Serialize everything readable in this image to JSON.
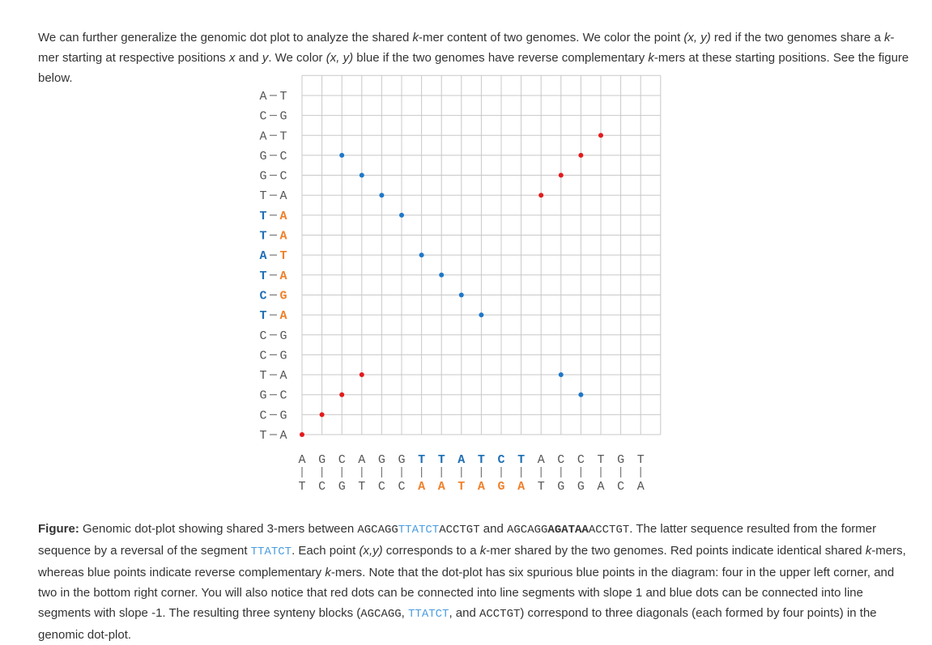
{
  "intro": {
    "p1": "We can further generalize the genomic dot plot to analyze the shared ",
    "k1": "k",
    "p2": "-mer content of two genomes. We color the point ",
    "xy1": "(x, y)",
    "p3": " red if the two genomes share a ",
    "k2": "k",
    "p4": "-mer starting at respective positions ",
    "x": "x",
    "p5": " and ",
    "y": "y",
    "p6": ". We color ",
    "xy2": "(x, y)",
    "p7": " blue if the two genomes have reverse complementary ",
    "k3": "k",
    "p8": "-mers at these starting positions. See the figure below."
  },
  "caption": {
    "label": "Figure:",
    "c1": " Genomic dot-plot showing shared 3-mers between ",
    "seq1_a": "AGCAGG",
    "seq1_b": "TTATCT",
    "seq1_c": "ACCTGT",
    "c2": " and ",
    "seq2_a": "AGCAGG",
    "seq2_b": "AGATAA",
    "seq2_c": "ACCTGT",
    "c3": ". The latter sequence resulted from the former sequence by a reversal of the segment ",
    "seg": "TTATCT",
    "c4": ". Each point ",
    "xy": "(x,y)",
    "c5": " corresponds to a ",
    "k1": "k",
    "c6": "-mer shared by the two genomes. Red points indicate identical shared ",
    "k2": "k",
    "c7": "-mers, whereas blue points indicate reverse complementary ",
    "k3": "k",
    "c8": "-mers. Note that the dot-plot has six spurious blue points in the diagram: four in the upper left corner, and two in the bottom right corner. You will also notice that red dots can be connected into line segments with slope 1 and blue dots can be connected into line segments with slope -1. The resulting three synteny blocks (",
    "b1": "AGCAGG",
    "c9": ", ",
    "b2": "TTATCT",
    "c10": ", and ",
    "b3": "ACCTGT",
    "c11": ") correspond to three diagonals (each formed by four points) in the genomic dot-plot."
  },
  "plot": {
    "x_top": [
      "A",
      "G",
      "C",
      "A",
      "G",
      "G",
      "T",
      "T",
      "A",
      "T",
      "C",
      "T",
      "A",
      "C",
      "C",
      "T",
      "G",
      "T"
    ],
    "x_bottom": [
      "T",
      "C",
      "G",
      "T",
      "C",
      "C",
      "A",
      "A",
      "T",
      "A",
      "G",
      "A",
      "T",
      "G",
      "G",
      "A",
      "C",
      "A"
    ],
    "x_highlight": [
      6,
      7,
      8,
      9,
      10,
      11
    ],
    "y_left": [
      "T",
      "C",
      "G",
      "T",
      "C",
      "C",
      "T",
      "C",
      "T",
      "A",
      "T",
      "T",
      "T",
      "G",
      "G",
      "A",
      "C",
      "A"
    ],
    "y_right": [
      "A",
      "G",
      "C",
      "A",
      "G",
      "G",
      "A",
      "G",
      "A",
      "T",
      "A",
      "A",
      "A",
      "C",
      "C",
      "T",
      "G",
      "T"
    ],
    "y_highlight": [
      6,
      7,
      8,
      9,
      10,
      11
    ],
    "red_points": [
      [
        0,
        0
      ],
      [
        1,
        1
      ],
      [
        2,
        2
      ],
      [
        3,
        3
      ],
      [
        12,
        12
      ],
      [
        13,
        13
      ],
      [
        14,
        14
      ],
      [
        15,
        15
      ]
    ],
    "blue_points": [
      [
        2,
        14
      ],
      [
        3,
        13
      ],
      [
        4,
        12
      ],
      [
        5,
        11
      ],
      [
        6,
        9
      ],
      [
        7,
        8
      ],
      [
        8,
        7
      ],
      [
        9,
        6
      ],
      [
        13,
        3
      ],
      [
        14,
        2
      ]
    ],
    "colors": {
      "red": "#e41a1c",
      "blue": "#1f78c8",
      "top_highlight": "#1f6fb5",
      "bottom_highlight": "#f0802a",
      "grid": "#c8c8c8",
      "label": "#555555"
    }
  }
}
